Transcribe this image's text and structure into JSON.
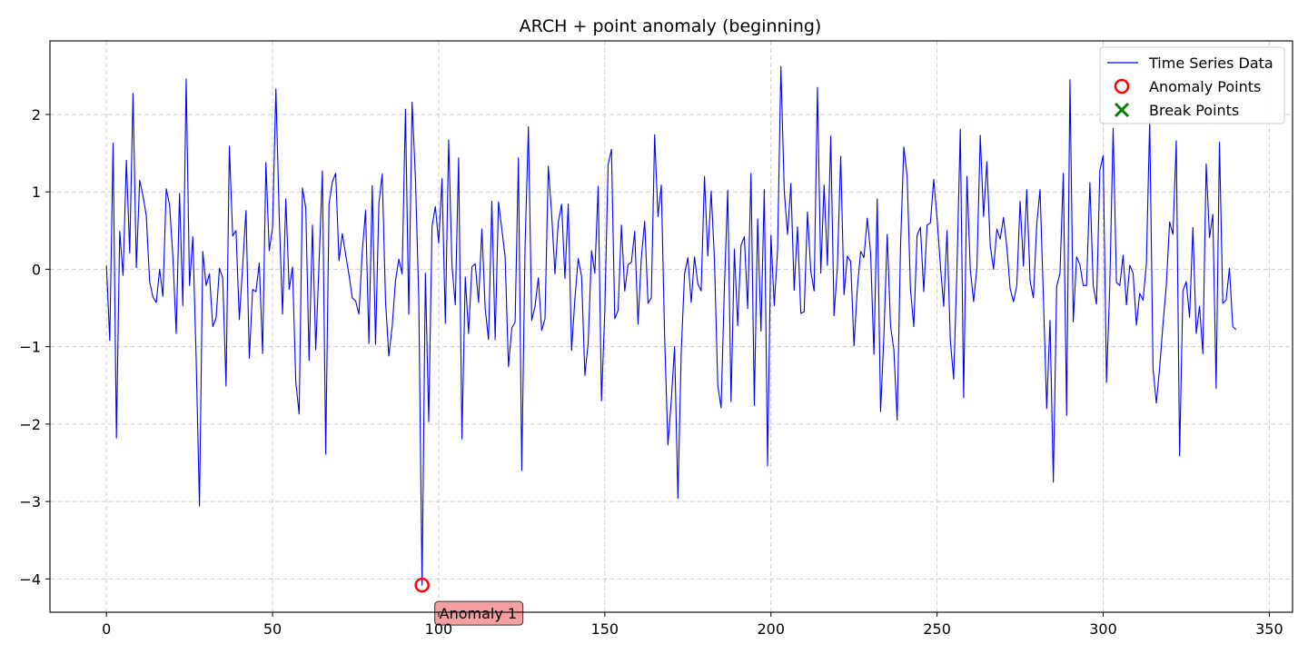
{
  "chart_data": {
    "type": "line",
    "title": "ARCH + point anomaly (beginning)",
    "xlabel": "",
    "ylabel": "",
    "xlim": [
      -17,
      357
    ],
    "ylim": [
      -4.43,
      2.95
    ],
    "xticks": [
      0,
      50,
      100,
      150,
      200,
      250,
      300,
      350
    ],
    "yticks": [
      -4,
      -3,
      -2,
      -1,
      0,
      1,
      2
    ],
    "grid": true,
    "legend_position": "top-right",
    "colors": {
      "series": "#0000ff",
      "anomaly": "#ff0000",
      "break": "#008000",
      "annotation_fill": "#f4a0a0",
      "grid": "#cccccc"
    },
    "legend": [
      "Time Series Data",
      "Anomaly Points",
      "Break Points"
    ],
    "series": [
      {
        "name": "Time Series Data",
        "x_start": 0,
        "values": [
          0.05,
          -0.92,
          1.63,
          -2.18,
          0.49,
          -0.08,
          1.41,
          0.21,
          2.27,
          0.02,
          1.15,
          0.95,
          0.69,
          -0.16,
          -0.36,
          -0.43,
          0.0,
          -0.35,
          1.04,
          0.83,
          0.16,
          -0.83,
          0.98,
          -0.47,
          2.46,
          -0.21,
          0.42,
          -1.15,
          -3.06,
          0.23,
          -0.21,
          -0.06,
          -0.74,
          -0.63,
          0.01,
          -0.11,
          -1.51,
          1.59,
          0.43,
          0.5,
          -0.65,
          0.04,
          0.76,
          -1.15,
          -0.26,
          -0.29,
          0.08,
          -1.09,
          1.38,
          0.24,
          0.54,
          2.33,
          0.69,
          -0.58,
          0.91,
          -0.26,
          0.03,
          -1.46,
          -1.87,
          1.05,
          0.79,
          -1.18,
          0.57,
          -1.04,
          0.09,
          1.27,
          -2.39,
          0.84,
          1.13,
          1.24,
          0.11,
          0.46,
          0.19,
          -0.07,
          -0.37,
          -0.41,
          -0.58,
          0.23,
          0.76,
          -0.96,
          1.08,
          -0.97,
          0.85,
          1.23,
          -0.41,
          -1.12,
          -0.74,
          -0.15,
          0.13,
          -0.06,
          2.07,
          -0.58,
          2.16,
          1.18,
          -0.36,
          -4.08,
          -0.05,
          -1.97,
          0.55,
          0.81,
          0.34,
          1.17,
          -0.7,
          1.67,
          0.05,
          -0.46,
          1.44,
          -2.19,
          -0.1,
          -0.83,
          0.03,
          0.07,
          -0.43,
          0.52,
          -0.51,
          -0.91,
          0.88,
          -0.91,
          0.87,
          0.52,
          0.16,
          -1.26,
          -0.76,
          -0.68,
          1.44,
          -2.6,
          0.3,
          1.84,
          -0.66,
          -0.48,
          -0.11,
          -0.79,
          -0.64,
          1.33,
          0.71,
          -0.06,
          0.61,
          0.84,
          -0.12,
          0.84,
          -1.05,
          -0.38,
          0.14,
          -0.09,
          -1.37,
          -0.95,
          0.24,
          -0.05,
          1.07,
          -1.7,
          -0.54,
          1.35,
          1.55,
          -0.64,
          -0.53,
          0.57,
          -0.28,
          0.06,
          0.09,
          0.49,
          -0.71,
          0.15,
          0.62,
          -0.44,
          -0.37,
          1.74,
          0.68,
          1.09,
          -0.86,
          -2.27,
          -1.7,
          -1.0,
          -2.96,
          -1.07,
          -0.06,
          0.15,
          -0.43,
          0.16,
          -0.19,
          -0.28,
          1.2,
          0.17,
          1.01,
          0.13,
          -1.5,
          -1.79,
          -0.23,
          1.02,
          -1.71,
          0.26,
          -0.73,
          0.31,
          0.42,
          -0.51,
          1.24,
          -1.76,
          0.65,
          -0.8,
          1.03,
          -2.54,
          0.44,
          -0.47,
          0.25,
          2.62,
          1.02,
          0.45,
          1.11,
          -0.27,
          0.55,
          -0.57,
          -0.55,
          0.74,
          -0.03,
          -0.28,
          2.35,
          -0.05,
          1.09,
          0.05,
          1.72,
          -0.6,
          0.03,
          1.46,
          -0.33,
          0.17,
          0.1,
          -0.99,
          -0.25,
          0.23,
          0.15,
          0.66,
          0.21,
          -1.1,
          0.91,
          -1.84,
          -0.86,
          0.45,
          -0.73,
          -1.04,
          -1.95,
          0.29,
          1.58,
          1.2,
          -0.26,
          -0.74,
          0.44,
          0.54,
          -0.29,
          0.57,
          0.6,
          1.16,
          0.66,
          0.05,
          -0.48,
          0.5,
          -0.92,
          -1.42,
          0.03,
          1.81,
          -1.66,
          1.2,
          0.0,
          -0.42,
          0.02,
          1.73,
          0.68,
          1.39,
          0.31,
          0.0,
          0.52,
          0.39,
          0.67,
          0.29,
          -0.25,
          -0.42,
          -0.21,
          0.88,
          0.04,
          1.03,
          -0.15,
          -0.37,
          0.58,
          1.03,
          -0.35,
          -1.8,
          -0.66,
          -2.75,
          -0.22,
          -0.05,
          1.24,
          -1.89,
          2.45,
          -0.68,
          0.16,
          0.06,
          -0.21,
          -0.21,
          1.12,
          -0.21,
          -0.45,
          1.28,
          1.47,
          -1.46,
          -0.19,
          1.82,
          -0.17,
          -0.21,
          0.18,
          -0.46,
          0.05,
          -0.05,
          -0.72,
          -0.31,
          -0.4,
          0.07,
          1.92,
          -1.28,
          -1.73,
          -1.27,
          -0.71,
          -0.21,
          0.61,
          0.45,
          1.66,
          -2.41,
          -0.28,
          -0.16,
          -0.62,
          0.54,
          -0.83,
          -0.48,
          -1.09,
          1.36,
          0.41,
          0.71,
          -1.54,
          1.64,
          -0.44,
          -0.4,
          0.01,
          -0.74,
          -0.78
        ]
      }
    ],
    "anomaly_points": [
      {
        "x": 95,
        "y": -4.08,
        "label": "Anomaly 1"
      }
    ],
    "break_points": []
  }
}
